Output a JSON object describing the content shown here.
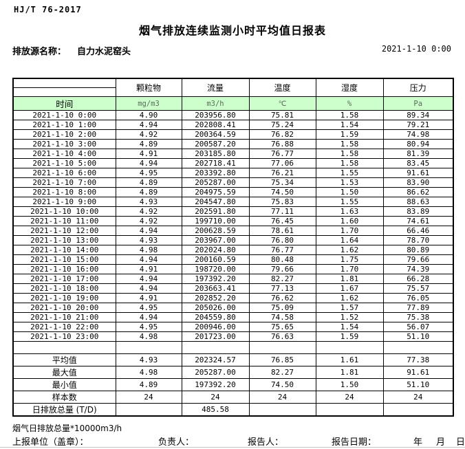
{
  "header": {
    "standard_no": "HJ/T 76-2017",
    "title": "烟气排放连续监测小时平均值日报表",
    "source_label": "排放源名称：",
    "source_name": "自力水泥窑头",
    "datetime": "2021-1-10 0:00"
  },
  "table": {
    "time_header": "时间",
    "columns": [
      "颗粒物",
      "流量",
      "温度",
      "湿度",
      "压力"
    ],
    "units": [
      "mg/m3",
      "m3/h",
      "℃",
      "%",
      "Pa"
    ],
    "rows": [
      {
        "time": "2021-1-10 0:00",
        "values": [
          "4.90",
          "203956.80",
          "75.81",
          "1.58",
          "89.34"
        ]
      },
      {
        "time": "2021-1-10 1:00",
        "values": [
          "4.94",
          "202808.41",
          "75.24",
          "1.54",
          "79.21"
        ]
      },
      {
        "time": "2021-1-10 2:00",
        "values": [
          "4.92",
          "200364.59",
          "76.82",
          "1.59",
          "74.98"
        ]
      },
      {
        "time": "2021-1-10 3:00",
        "values": [
          "4.89",
          "200587.20",
          "76.88",
          "1.58",
          "80.94"
        ]
      },
      {
        "time": "2021-1-10 4:00",
        "values": [
          "4.91",
          "203185.80",
          "76.77",
          "1.58",
          "81.39"
        ]
      },
      {
        "time": "2021-1-10 5:00",
        "values": [
          "4.94",
          "202718.41",
          "77.06",
          "1.58",
          "83.45"
        ]
      },
      {
        "time": "2021-1-10 6:00",
        "values": [
          "4.95",
          "203392.80",
          "76.21",
          "1.55",
          "91.61"
        ]
      },
      {
        "time": "2021-1-10 7:00",
        "values": [
          "4.89",
          "205287.00",
          "75.34",
          "1.53",
          "83.90"
        ]
      },
      {
        "time": "2021-1-10 8:00",
        "values": [
          "4.89",
          "204975.59",
          "74.50",
          "1.50",
          "86.62"
        ]
      },
      {
        "time": "2021-1-10 9:00",
        "values": [
          "4.93",
          "204547.80",
          "75.83",
          "1.55",
          "88.63"
        ]
      },
      {
        "time": "2021-1-10 10:00",
        "values": [
          "4.92",
          "202591.80",
          "77.11",
          "1.63",
          "83.89"
        ]
      },
      {
        "time": "2021-1-10 11:00",
        "values": [
          "4.92",
          "199710.00",
          "76.45",
          "1.60",
          "74.61"
        ]
      },
      {
        "time": "2021-1-10 12:00",
        "values": [
          "4.94",
          "200628.59",
          "78.61",
          "1.70",
          "66.46"
        ]
      },
      {
        "time": "2021-1-10 13:00",
        "values": [
          "4.93",
          "203967.00",
          "76.80",
          "1.64",
          "78.70"
        ]
      },
      {
        "time": "2021-1-10 14:00",
        "values": [
          "4.98",
          "202024.80",
          "76.77",
          "1.62",
          "80.89"
        ]
      },
      {
        "time": "2021-1-10 15:00",
        "values": [
          "4.94",
          "200160.59",
          "80.48",
          "1.75",
          "79.66"
        ]
      },
      {
        "time": "2021-1-10 16:00",
        "values": [
          "4.91",
          "198720.00",
          "79.66",
          "1.70",
          "74.39"
        ]
      },
      {
        "time": "2021-1-10 17:00",
        "values": [
          "4.94",
          "197392.20",
          "82.27",
          "1.81",
          "66.28"
        ]
      },
      {
        "time": "2021-1-10 18:00",
        "values": [
          "4.94",
          "203663.41",
          "77.13",
          "1.67",
          "75.57"
        ]
      },
      {
        "time": "2021-1-10 19:00",
        "values": [
          "4.91",
          "202852.20",
          "76.62",
          "1.62",
          "76.05"
        ]
      },
      {
        "time": "2021-1-10 20:00",
        "values": [
          "4.95",
          "205026.00",
          "75.09",
          "1.57",
          "77.89"
        ]
      },
      {
        "time": "2021-1-10 21:00",
        "values": [
          "4.94",
          "204559.80",
          "74.58",
          "1.52",
          "75.38"
        ]
      },
      {
        "time": "2021-1-10 22:00",
        "values": [
          "4.95",
          "200946.00",
          "75.65",
          "1.54",
          "56.07"
        ]
      },
      {
        "time": "2021-1-10 23:00",
        "values": [
          "4.98",
          "201723.00",
          "76.63",
          "1.59",
          "51.10"
        ]
      }
    ],
    "summary": [
      {
        "label": "平均值",
        "values": [
          "4.93",
          "202324.57",
          "76.85",
          "1.61",
          "77.38"
        ]
      },
      {
        "label": "最大值",
        "values": [
          "4.98",
          "205287.00",
          "82.27",
          "1.81",
          "91.61"
        ]
      },
      {
        "label": "最小值",
        "values": [
          "4.89",
          "197392.20",
          "74.50",
          "1.50",
          "51.10"
        ]
      },
      {
        "label": "样本数",
        "values": [
          "24",
          "24",
          "24",
          "24",
          "24"
        ]
      },
      {
        "label": "日排放总量 (T/D)",
        "values": [
          "",
          "485.58",
          "",
          "",
          ""
        ]
      }
    ]
  },
  "footer": {
    "note": "烟气日排放总量*10000m3/h",
    "report_unit_label": "上报单位（盖章）：",
    "responsible_label": "负责人：",
    "reporter_label": "报告人：",
    "report_date_label": "报告日期：",
    "year_label": "年",
    "month_label": "月",
    "day_label": "日"
  },
  "colors": {
    "unit_row_green": "#ccffcc",
    "table_border": "#000000"
  }
}
